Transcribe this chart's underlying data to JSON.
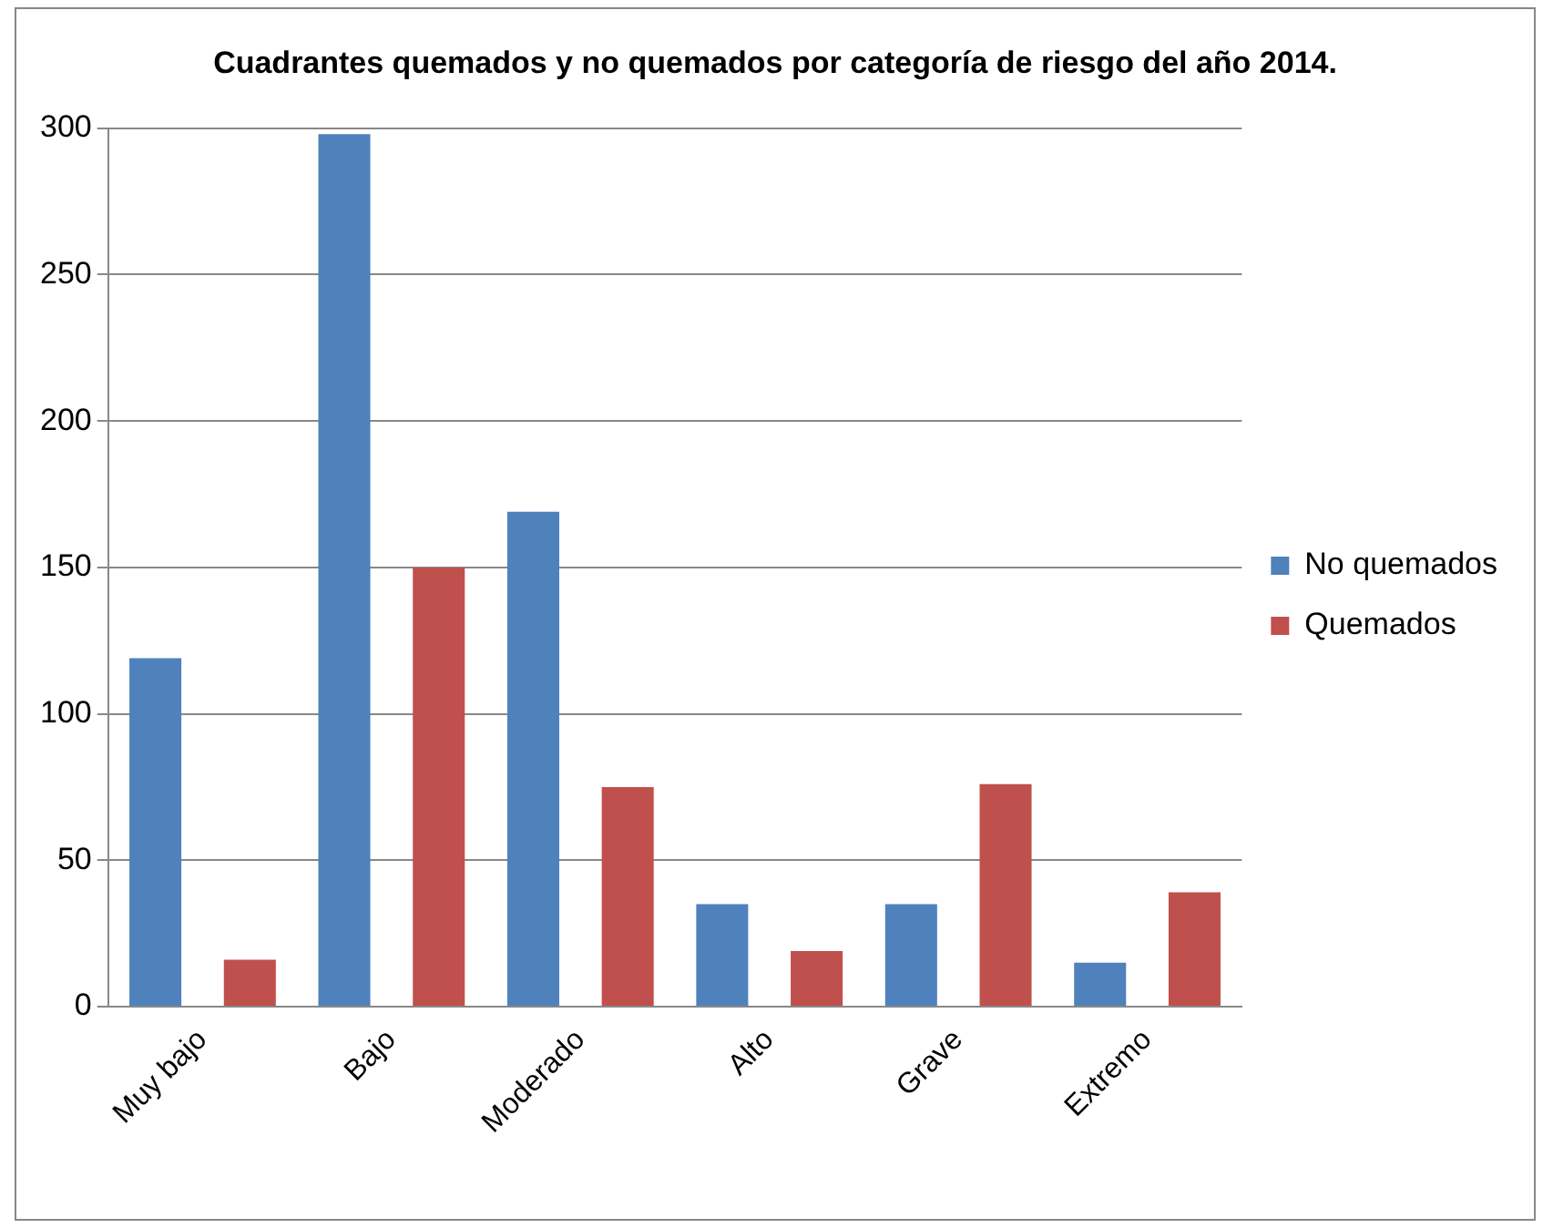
{
  "chart_data": {
    "type": "bar",
    "title": "Cuadrantes quemados y no quemados por categoría de riesgo del año 2014.",
    "categories": [
      "Muy bajo",
      "Bajo",
      "Moderado",
      "Alto",
      "Grave",
      "Extremo"
    ],
    "series": [
      {
        "name": "No quemados",
        "color": "#4f81bd",
        "values": [
          119,
          298,
          169,
          35,
          35,
          15
        ]
      },
      {
        "name": "Quemados",
        "color": "#c0504d",
        "values": [
          16,
          150,
          75,
          19,
          76,
          39
        ]
      }
    ],
    "ylim": [
      0,
      300
    ],
    "yticks": [
      0,
      50,
      100,
      150,
      200,
      250,
      300
    ],
    "grid": "y",
    "legend": "right"
  }
}
